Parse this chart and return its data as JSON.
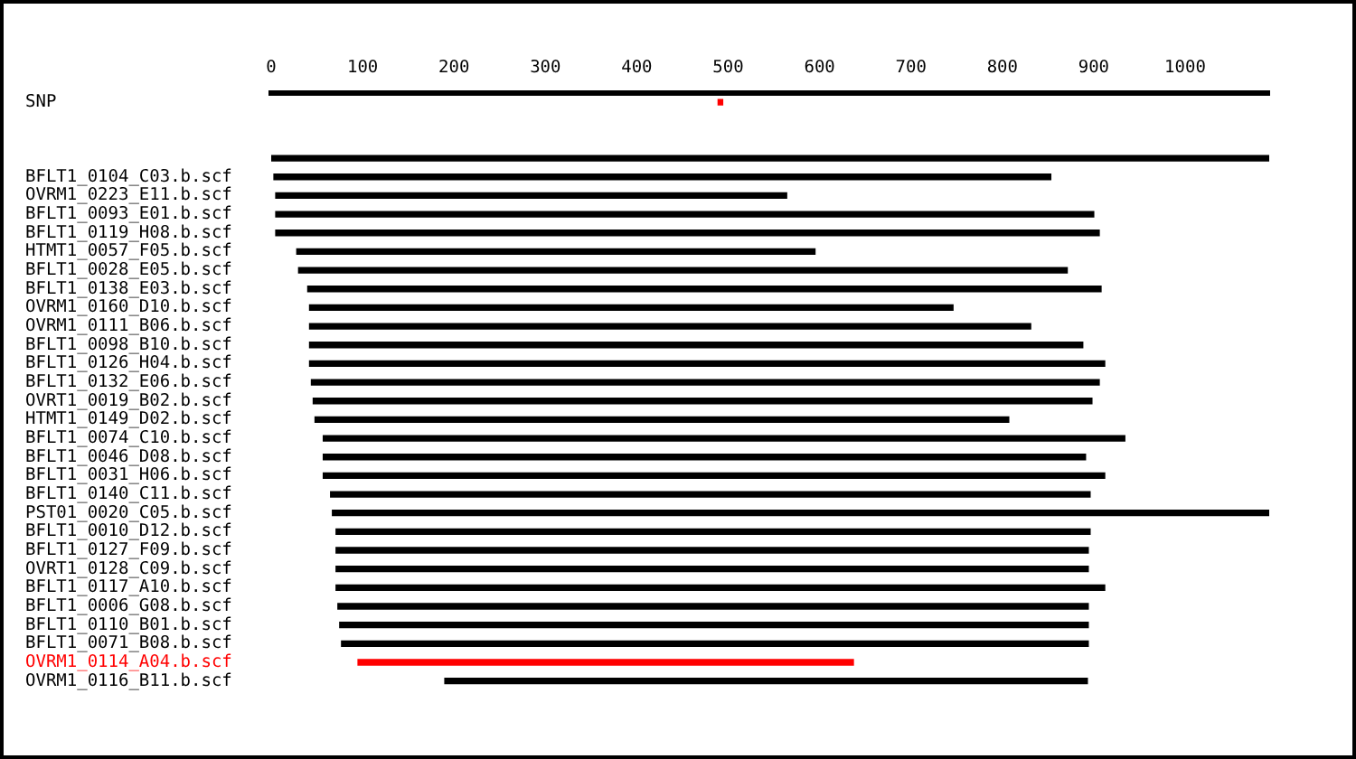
{
  "chart_data": {
    "type": "bar",
    "orientation": "horizontal",
    "categories": [
      "SNP",
      null,
      null,
      null,
      "BFLT1_0104_C03.b.scf",
      "OVRM1_0223_E11.b.scf",
      "BFLT1_0093_E01.b.scf",
      "BFLT1_0119_H08.b.scf",
      "HTMT1_0057_F05.b.scf",
      "BFLT1_0028_E05.b.scf",
      "BFLT1_0138_E03.b.scf",
      "OVRM1_0160_D10.b.scf",
      "OVRM1_0111_B06.b.scf",
      "BFLT1_0098_B10.b.scf",
      "BFLT1_0126_H04.b.scf",
      "BFLT1_0132_E06.b.scf",
      "OVRT1_0019_B02.b.scf",
      "HTMT1_0149_D02.b.scf",
      "BFLT1_0074_C10.b.scf",
      "BFLT1_0046_D08.b.scf",
      "BFLT1_0031_H06.b.scf",
      "BFLT1_0140_C11.b.scf",
      "PST01_0020_C05.b.scf",
      "BFLT1_0010_D12.b.scf",
      "BFLT1_0127_F09.b.scf",
      "OVRT1_0128_C09.b.scf",
      "BFLT1_0117_A10.b.scf",
      "BFLT1_0006_G08.b.scf",
      "BFLT1_0110_B01.b.scf",
      "BFLT1_0071_B08.b.scf",
      "OVRM1_0114_A04.b.scf",
      "OVRM1_0116_B11.b.scf"
    ],
    "series": [
      {
        "colors": [
          null,
          null,
          null,
          "#000000",
          "#000000",
          "#000000",
          "#000000",
          "#000000",
          "#000000",
          "#000000",
          "#000000",
          "#000000",
          "#000000",
          "#000000",
          "#000000",
          "#000000",
          "#000000",
          "#000000",
          "#000000",
          "#000000",
          "#000000",
          "#000000",
          "#000000",
          "#000000",
          "#000000",
          "#000000",
          "#000000",
          "#000000",
          "#000000",
          "#000000",
          "#ff0000",
          "#000000"
        ],
        "base": [
          null,
          null,
          null,
          0,
          3,
          5,
          5,
          5,
          28,
          30,
          40,
          42,
          42,
          42,
          42,
          44,
          46,
          48,
          57,
          57,
          57,
          65,
          67,
          71,
          71,
          71,
          71,
          73,
          75,
          77,
          95,
          190
        ],
        "values": [
          null,
          null,
          null,
          1092,
          850,
          559,
          895,
          901,
          567,
          841,
          868,
          704,
          789,
          846,
          870,
          862,
          852,
          759,
          877,
          834,
          855,
          831,
          1025,
          825,
          823,
          823,
          841,
          821,
          819,
          817,
          542,
          703
        ]
      },
      {
        "color": "#ff0000",
        "base": [
          489,
          null,
          null,
          null,
          null,
          null,
          null,
          null,
          null,
          null,
          null,
          null,
          null,
          null,
          null,
          null,
          null,
          null,
          null,
          null,
          null,
          null,
          null,
          null,
          null,
          null,
          null,
          null,
          null,
          null,
          null,
          null
        ],
        "values": [
          5,
          null,
          null,
          null,
          null,
          null,
          null,
          null,
          null,
          null,
          null,
          null,
          null,
          null,
          null,
          null,
          null,
          null,
          null,
          null,
          null,
          null,
          null,
          null,
          null,
          null,
          null,
          null,
          null,
          null,
          null,
          null
        ]
      }
    ],
    "xlim": [
      0,
      1092
    ],
    "xticks": [
      0,
      100,
      200,
      300,
      400,
      500,
      600,
      700,
      800,
      900,
      1000
    ],
    "grid": false,
    "legend": false
  }
}
